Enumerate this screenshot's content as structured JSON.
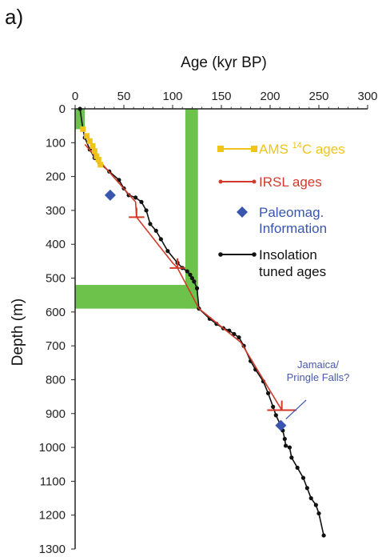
{
  "panel_label": "a)",
  "colors": {
    "ams": "#f0c419",
    "irsl": "#d23a2a",
    "paleomag": "#3a55b0",
    "insolation": "#111111",
    "band": "#6cc24a"
  },
  "chart_data": {
    "type": "scatter",
    "xlabel": "Age (kyr BP)",
    "ylabel": "Depth (m)",
    "xlim": [
      0,
      300
    ],
    "ylim": [
      0,
      1300
    ],
    "x_ticks": [
      "0",
      "50",
      "100",
      "150",
      "200",
      "250",
      "300"
    ],
    "y_ticks": [
      "0",
      "100",
      "200",
      "300",
      "400",
      "500",
      "600",
      "700",
      "800",
      "900",
      "1000",
      "1100",
      "1200",
      "1300"
    ],
    "y_inverted": true,
    "x_axis_position": "top",
    "grid": false,
    "legend_position": "right",
    "bands": [
      {
        "orientation": "vertical",
        "x": [
          113,
          126
        ],
        "y": [
          0,
          590
        ]
      },
      {
        "orientation": "horizontal",
        "x": [
          0,
          126
        ],
        "y": [
          520,
          590
        ]
      },
      {
        "orientation": "box",
        "x": [
          0,
          10
        ],
        "y": [
          0,
          60
        ]
      }
    ],
    "series": [
      {
        "name": "AMS ¹⁴C ages",
        "legend": {
          "main": "AMS ",
          "sup": "14",
          "rest": "C ages"
        },
        "marker": "square",
        "connected": false,
        "points": [
          [
            8,
            60
          ],
          [
            12,
            80
          ],
          [
            15,
            95
          ],
          [
            18,
            110
          ],
          [
            20,
            125
          ],
          [
            22,
            140
          ],
          [
            24,
            150
          ],
          [
            26,
            165
          ]
        ]
      },
      {
        "name": "IRSL ages",
        "legend": {
          "main": "IRSL ages"
        },
        "marker": "dash-line",
        "connected": true,
        "points": [
          [
            10,
            105
          ],
          [
            62,
            275
          ],
          [
            63,
            320
          ],
          [
            100,
            455
          ],
          [
            105,
            470
          ],
          [
            127,
            590
          ],
          [
            170,
            690
          ],
          [
            212,
            890
          ]
        ],
        "error_bars": [
          {
            "x": 63,
            "y": 320,
            "xerr": 8,
            "yerr": 0
          },
          {
            "x": 105,
            "y": 470,
            "xerr": 8,
            "yerr": 0
          },
          {
            "x": 212,
            "y": 890,
            "xerr": 15,
            "yerr": 0
          }
        ]
      },
      {
        "name": "Paleomag. Information",
        "legend": {
          "main": "Paleomag.",
          "line2": "Information"
        },
        "marker": "diamond",
        "connected": false,
        "points": [
          [
            36,
            255
          ],
          [
            211,
            935
          ]
        ]
      },
      {
        "name": "Insolation tuned ages",
        "legend": {
          "main": "Insolation",
          "line2": "tuned ages"
        },
        "marker": "circle",
        "connected": true,
        "points": [
          [
            5,
            0
          ],
          [
            8,
            60
          ],
          [
            10,
            85
          ],
          [
            15,
            120
          ],
          [
            20,
            145
          ],
          [
            25,
            160
          ],
          [
            35,
            185
          ],
          [
            45,
            210
          ],
          [
            50,
            235
          ],
          [
            55,
            255
          ],
          [
            62,
            262
          ],
          [
            68,
            275
          ],
          [
            73,
            300
          ],
          [
            77,
            340
          ],
          [
            83,
            360
          ],
          [
            88,
            385
          ],
          [
            95,
            420
          ],
          [
            105,
            455
          ],
          [
            110,
            470
          ],
          [
            115,
            480
          ],
          [
            118,
            490
          ],
          [
            120,
            500
          ],
          [
            122,
            510
          ],
          [
            125,
            530
          ],
          [
            127,
            590
          ],
          [
            138,
            620
          ],
          [
            145,
            635
          ],
          [
            152,
            648
          ],
          [
            158,
            655
          ],
          [
            163,
            665
          ],
          [
            168,
            675
          ],
          [
            173,
            700
          ],
          [
            180,
            745
          ],
          [
            185,
            770
          ],
          [
            193,
            805
          ],
          [
            198,
            840
          ],
          [
            203,
            880
          ],
          [
            206,
            905
          ],
          [
            210,
            930
          ],
          [
            213,
            950
          ],
          [
            215,
            975
          ],
          [
            216,
            995
          ],
          [
            220,
            1000
          ],
          [
            222,
            1030
          ],
          [
            228,
            1060
          ],
          [
            234,
            1090
          ],
          [
            238,
            1120
          ],
          [
            242,
            1150
          ],
          [
            247,
            1170
          ],
          [
            250,
            1195
          ],
          [
            255,
            1260
          ]
        ]
      }
    ],
    "annotations": [
      {
        "lines": [
          "Jamaica/",
          "Pringle Falls?"
        ],
        "arrow_to": [
          208,
          935
        ]
      }
    ]
  }
}
